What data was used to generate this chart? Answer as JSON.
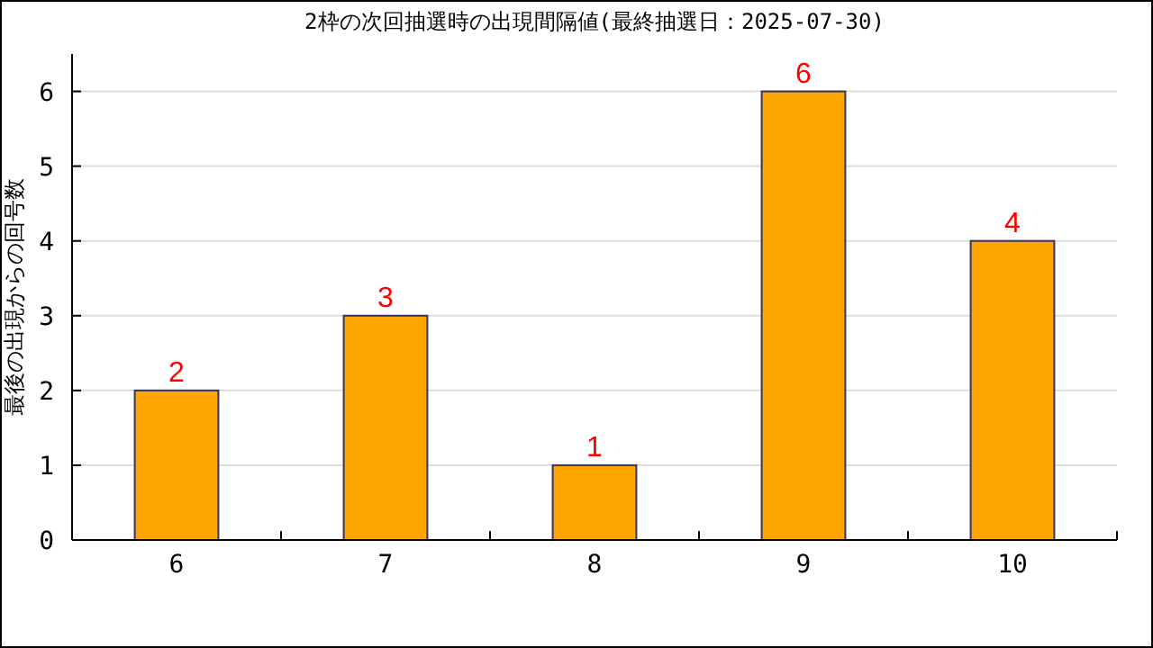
{
  "chart_data": {
    "type": "bar",
    "title": "2枠の次回抽選時の出現間隔値(最終抽選日：2025-07-30)",
    "ylabel": "最後の出現からの回号数",
    "categories": [
      "6",
      "7",
      "8",
      "9",
      "10"
    ],
    "values": [
      2,
      3,
      1,
      6,
      4
    ],
    "color": "#ffa500",
    "ylim": [
      0,
      6.5
    ],
    "yticks": [
      0,
      1,
      2,
      3,
      4,
      5,
      6
    ],
    "grid": "y",
    "data_labels": true
  }
}
